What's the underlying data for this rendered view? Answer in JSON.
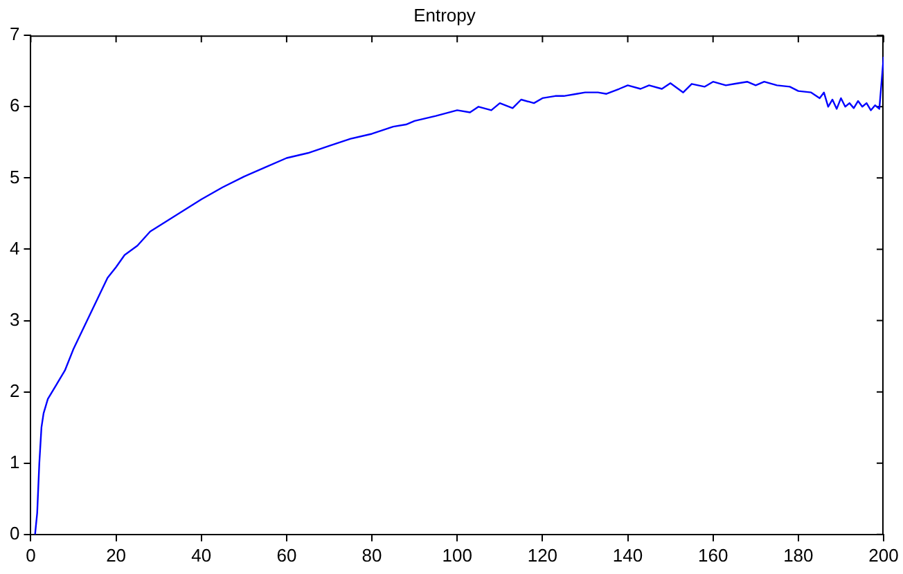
{
  "chart_data": {
    "type": "line",
    "title": "Entropy",
    "x": [
      1,
      1.5,
      2,
      2.5,
      3,
      4,
      6,
      8,
      10,
      12,
      14,
      16,
      18,
      20,
      22,
      25,
      28,
      32,
      36,
      40,
      45,
      50,
      55,
      60,
      65,
      70,
      75,
      80,
      85,
      88,
      90,
      95,
      100,
      103,
      105,
      108,
      110,
      113,
      115,
      118,
      120,
      123,
      125,
      128,
      130,
      133,
      135,
      138,
      140,
      143,
      145,
      148,
      150,
      153,
      155,
      158,
      160,
      163,
      165,
      168,
      170,
      172,
      175,
      178,
      180,
      183,
      185,
      186,
      187,
      188,
      189,
      190,
      191,
      192,
      193,
      194,
      195,
      196,
      197,
      198,
      199,
      200
    ],
    "series": [
      {
        "color": "#0000ff",
        "values": [
          0,
          0.3,
          1.0,
          1.5,
          1.7,
          1.9,
          2.1,
          2.3,
          2.6,
          2.85,
          3.1,
          3.35,
          3.6,
          3.75,
          3.92,
          4.05,
          4.25,
          4.4,
          4.55,
          4.7,
          4.87,
          5.02,
          5.15,
          5.28,
          5.35,
          5.45,
          5.55,
          5.62,
          5.72,
          5.75,
          5.8,
          5.87,
          5.95,
          5.92,
          6.0,
          5.95,
          6.05,
          5.98,
          6.1,
          6.05,
          6.12,
          6.15,
          6.15,
          6.18,
          6.2,
          6.2,
          6.18,
          6.25,
          6.3,
          6.25,
          6.3,
          6.25,
          6.33,
          6.2,
          6.32,
          6.28,
          6.35,
          6.3,
          6.32,
          6.35,
          6.3,
          6.35,
          6.3,
          6.28,
          6.22,
          6.2,
          6.12,
          6.2,
          6.0,
          6.1,
          5.97,
          6.12,
          6.0,
          6.05,
          5.98,
          6.08,
          6.0,
          6.05,
          5.95,
          6.02,
          5.97,
          6.7
        ]
      }
    ],
    "xlim": [
      0,
      200
    ],
    "xticks": [
      0,
      20,
      40,
      60,
      80,
      100,
      120,
      140,
      160,
      180,
      200
    ],
    "ylim": [
      0,
      7
    ],
    "yticks": [
      0,
      1,
      2,
      3,
      4,
      5,
      6,
      7
    ],
    "grid": false,
    "legend": false,
    "marker": "none",
    "line_style": "solid"
  }
}
